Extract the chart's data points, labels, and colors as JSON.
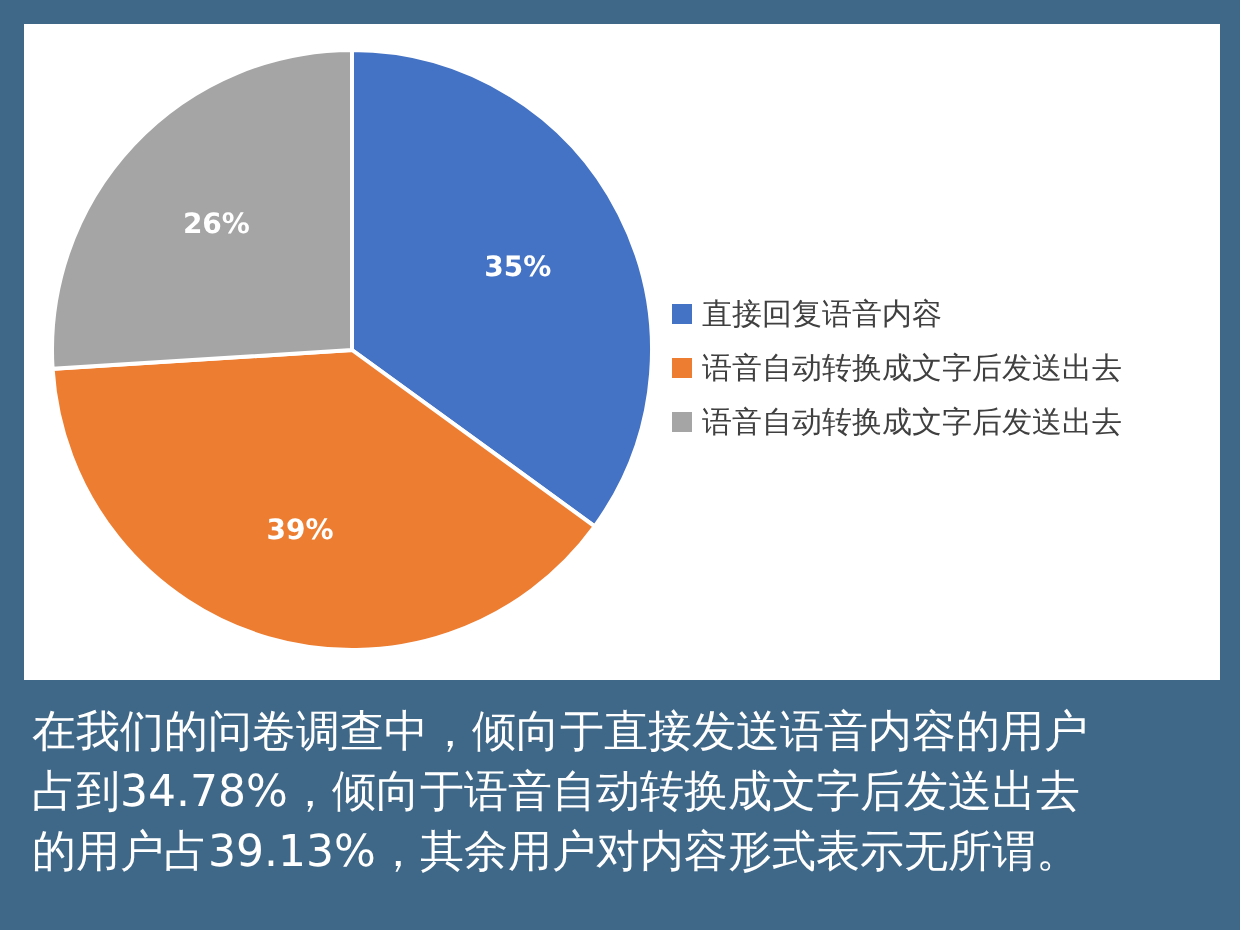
{
  "chart_data": {
    "type": "pie",
    "categories": [
      "直接回复语音内容",
      "语音自动转换成文字后发送出去",
      "语音自动转换成文字后发送出去"
    ],
    "values": [
      35,
      39,
      26
    ],
    "colors": [
      "#4472c4",
      "#ed7d31",
      "#a5a5a5"
    ],
    "value_labels": [
      "35%",
      "39%",
      "26%"
    ],
    "legend": "right",
    "annotations": [
      "在我们的问卷调查中，倾向于直接发送语音内容的用户占到34.78%，倾向于语音自动转换成文字后发送出去的用户占39.13%，其余用户对内容形式表示无所谓。"
    ]
  }
}
